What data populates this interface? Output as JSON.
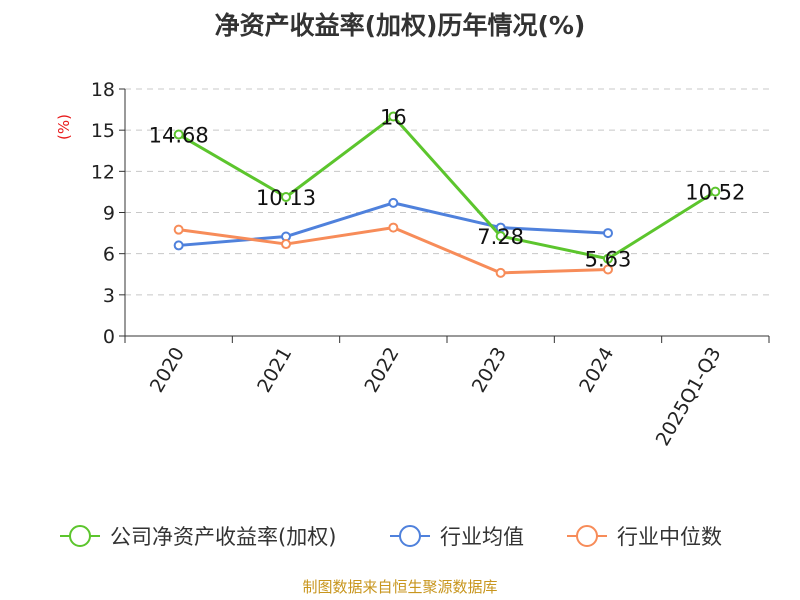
{
  "title": "净资产收益率(加权)历年情况(%)",
  "source": "制图数据来自恒生聚源数据库",
  "chart_data": {
    "type": "line",
    "title": "净资产收益率(加权)历年情况(%)",
    "ylabel": "(%)",
    "ylim": [
      0,
      18
    ],
    "yticks": [
      0,
      3,
      6,
      9,
      12,
      15,
      18
    ],
    "grid": true,
    "legend_position": "bottom",
    "categories": [
      "2020",
      "2021",
      "2022",
      "2023",
      "2024",
      "2025Q1-Q3"
    ],
    "series": [
      {
        "name": "公司净资产收益率(加权)",
        "color": "#5cc52d",
        "values": [
          14.68,
          10.13,
          16,
          7.28,
          5.63,
          10.52
        ],
        "labels": [
          "14.68",
          "10.13",
          "16",
          "7.28",
          "5.63",
          "10.52"
        ]
      },
      {
        "name": "行业均值",
        "color": "#4f81dc",
        "values": [
          6.6,
          7.25,
          9.7,
          7.9,
          7.5,
          null
        ]
      },
      {
        "name": "行业中位数",
        "color": "#f78c59",
        "values": [
          7.75,
          6.7,
          7.9,
          4.6,
          4.85,
          null
        ]
      }
    ]
  }
}
